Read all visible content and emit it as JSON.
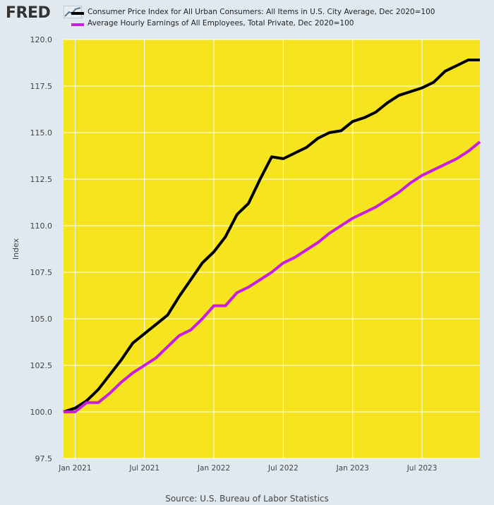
{
  "header": {
    "logo_text": "FRED",
    "logo_graph_icon": "line-chart-icon"
  },
  "legend": [
    {
      "label": "Consumer Price Index for All Urban Consumers: All Items in U.S. City Average, Dec 2020=100",
      "color": "#000000"
    },
    {
      "label": "Average Hourly Earnings of All Employees, Total Private, Dec 2020=100",
      "color": "#c71ee0"
    }
  ],
  "source": "Source: U.S. Bureau of Labor Statistics",
  "colors": {
    "plot_background": "#f6e51e",
    "page_background": "#e1e9f0",
    "gridline": "#ffffff"
  },
  "chart_data": {
    "type": "line",
    "ylabel": "Index",
    "ylim": [
      97.5,
      120.0
    ],
    "yticks": [
      97.5,
      100.0,
      102.5,
      105.0,
      107.5,
      110.0,
      112.5,
      115.0,
      117.5,
      120.0
    ],
    "ytick_labels": [
      "97.5",
      "100.0",
      "102.5",
      "105.0",
      "107.5",
      "110.0",
      "112.5",
      "115.0",
      "117.5",
      "120.0"
    ],
    "xlim": [
      "2020-12",
      "2023-12"
    ],
    "xticks": [
      "2021-01",
      "2021-07",
      "2022-01",
      "2022-07",
      "2023-01",
      "2023-07"
    ],
    "xtick_labels": [
      "Jan 2021",
      "Jul 2021",
      "Jan 2022",
      "Jul 2022",
      "Jan 2023",
      "Jul 2023"
    ],
    "grid": true,
    "x": [
      "2020-12",
      "2021-01",
      "2021-02",
      "2021-03",
      "2021-04",
      "2021-05",
      "2021-06",
      "2021-07",
      "2021-08",
      "2021-09",
      "2021-10",
      "2021-11",
      "2021-12",
      "2022-01",
      "2022-02",
      "2022-03",
      "2022-04",
      "2022-05",
      "2022-06",
      "2022-07",
      "2022-08",
      "2022-09",
      "2022-10",
      "2022-11",
      "2022-12",
      "2023-01",
      "2023-02",
      "2023-03",
      "2023-04",
      "2023-05",
      "2023-06",
      "2023-07",
      "2023-08",
      "2023-09",
      "2023-10",
      "2023-11",
      "2023-12"
    ],
    "series": [
      {
        "name": "Consumer Price Index for All Urban Consumers: All Items in U.S. City Average, Dec 2020=100",
        "color": "#000000",
        "values": [
          100.0,
          100.2,
          100.6,
          101.2,
          102.0,
          102.8,
          103.7,
          104.2,
          104.7,
          105.2,
          106.2,
          107.1,
          108.0,
          108.6,
          109.4,
          110.6,
          111.2,
          112.5,
          113.7,
          113.6,
          113.9,
          114.2,
          114.7,
          115.0,
          115.1,
          115.6,
          115.8,
          116.1,
          116.6,
          117.0,
          117.2,
          117.4,
          117.7,
          118.3,
          118.6,
          118.9,
          118.9
        ]
      },
      {
        "name": "Average Hourly Earnings of All Employees, Total Private, Dec 2020=100",
        "color": "#c71ee0",
        "values": [
          100.0,
          100.0,
          100.5,
          100.5,
          101.0,
          101.6,
          102.1,
          102.5,
          102.9,
          103.5,
          104.1,
          104.4,
          105.0,
          105.7,
          105.7,
          106.4,
          106.7,
          107.1,
          107.5,
          108.0,
          108.3,
          108.7,
          109.1,
          109.6,
          110.0,
          110.4,
          110.7,
          111.0,
          111.4,
          111.8,
          112.3,
          112.7,
          113.0,
          113.3,
          113.6,
          114.0,
          114.5
        ]
      }
    ]
  }
}
